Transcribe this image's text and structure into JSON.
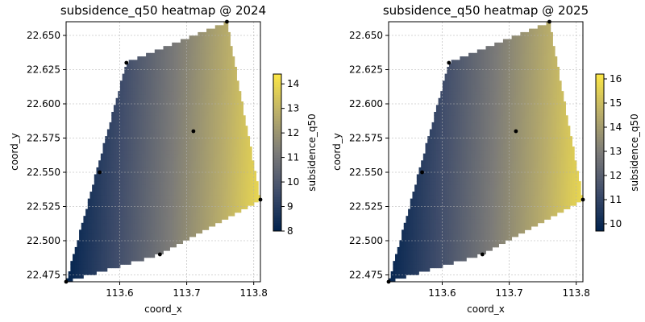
{
  "chart_data": [
    {
      "type": "heatmap",
      "title": "subsidence_q50 heatmap @ 2024",
      "xlabel": "coord_x",
      "ylabel": "coord_y",
      "colorbar_label": "subsidence_q50",
      "colormap": "cividis",
      "xlim": [
        113.52,
        113.81
      ],
      "ylim": [
        22.47,
        22.66
      ],
      "xticks": [
        113.6,
        113.7,
        113.8
      ],
      "xtick_labels": [
        "113.6",
        "113.7",
        "113.8"
      ],
      "yticks": [
        22.475,
        22.5,
        22.525,
        22.55,
        22.575,
        22.6,
        22.625,
        22.65
      ],
      "ytick_labels": [
        "22.475",
        "22.500",
        "22.525",
        "22.550",
        "22.575",
        "22.600",
        "22.625",
        "22.650"
      ],
      "clim": [
        8.0,
        14.4
      ],
      "cticks": [
        8,
        9,
        10,
        11,
        12,
        13,
        14
      ],
      "ctick_labels": [
        "8",
        "9",
        "10",
        "11",
        "12",
        "13",
        "14"
      ],
      "grid": true,
      "points": [
        {
          "x": 113.52,
          "y": 22.47,
          "v": 8.0
        },
        {
          "x": 113.57,
          "y": 22.55,
          "v": 9.4
        },
        {
          "x": 113.61,
          "y": 22.63,
          "v": 9.8
        },
        {
          "x": 113.66,
          "y": 22.49,
          "v": 10.5
        },
        {
          "x": 113.71,
          "y": 22.58,
          "v": 11.5
        },
        {
          "x": 113.76,
          "y": 22.66,
          "v": 12.5
        },
        {
          "x": 113.81,
          "y": 22.53,
          "v": 14.4
        }
      ]
    },
    {
      "type": "heatmap",
      "title": "subsidence_q50 heatmap @ 2025",
      "xlabel": "coord_x",
      "ylabel": "coord_y",
      "colorbar_label": "subsidence_q50",
      "colormap": "cividis",
      "xlim": [
        113.52,
        113.81
      ],
      "ylim": [
        22.47,
        22.66
      ],
      "xticks": [
        113.6,
        113.7,
        113.8
      ],
      "xtick_labels": [
        "113.6",
        "113.7",
        "113.8"
      ],
      "yticks": [
        22.475,
        22.5,
        22.525,
        22.55,
        22.575,
        22.6,
        22.625,
        22.65
      ],
      "ytick_labels": [
        "22.475",
        "22.500",
        "22.525",
        "22.550",
        "22.575",
        "22.600",
        "22.625",
        "22.650"
      ],
      "clim": [
        9.7,
        16.2
      ],
      "cticks": [
        10,
        11,
        12,
        13,
        14,
        15,
        16
      ],
      "ctick_labels": [
        "10",
        "11",
        "12",
        "13",
        "14",
        "15",
        "16"
      ],
      "grid": true,
      "points": [
        {
          "x": 113.52,
          "y": 22.47,
          "v": 9.7
        },
        {
          "x": 113.57,
          "y": 22.55,
          "v": 11.2
        },
        {
          "x": 113.61,
          "y": 22.63,
          "v": 11.6
        },
        {
          "x": 113.66,
          "y": 22.49,
          "v": 12.3
        },
        {
          "x": 113.71,
          "y": 22.58,
          "v": 13.3
        },
        {
          "x": 113.76,
          "y": 22.66,
          "v": 14.3
        },
        {
          "x": 113.81,
          "y": 22.53,
          "v": 16.2
        }
      ]
    }
  ]
}
